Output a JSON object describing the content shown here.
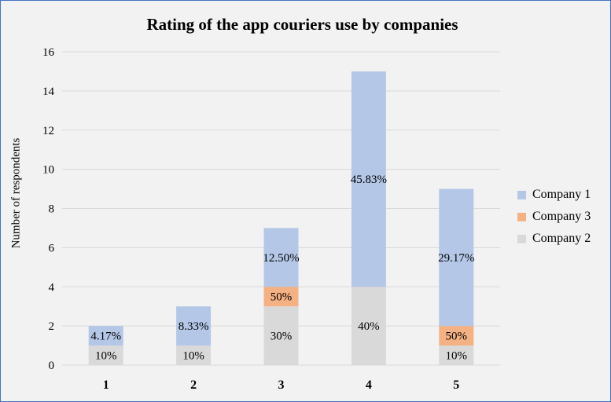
{
  "chart_data": {
    "type": "bar",
    "stacked": true,
    "title": "Rating of the app couriers use by companies",
    "xlabel": "",
    "ylabel": "Number of respondents",
    "categories": [
      "1",
      "2",
      "3",
      "4",
      "5"
    ],
    "ylim": [
      0,
      16
    ],
    "yticks": [
      0,
      2,
      4,
      6,
      8,
      10,
      12,
      14,
      16
    ],
    "grid": true,
    "legend_position": "right",
    "series": [
      {
        "name": "Company 2",
        "color": "#d9d9d9",
        "values": [
          1,
          1,
          3,
          4,
          1
        ],
        "labels": [
          "10%",
          "10%",
          "30%",
          "40%",
          "10%"
        ]
      },
      {
        "name": "Company 3",
        "color": "#f4b183",
        "values": [
          0,
          0,
          1,
          0,
          1
        ],
        "labels": [
          "",
          "",
          "50%",
          "",
          "50%"
        ]
      },
      {
        "name": "Company 1",
        "color": "#b4c7e7",
        "values": [
          1,
          2,
          3,
          11,
          7
        ],
        "labels": [
          "4.17%",
          "8.33%",
          "12.50%",
          "45.83%",
          "29.17%"
        ]
      }
    ],
    "legend_order": [
      "Company 1",
      "Company 3",
      "Company 2"
    ]
  }
}
